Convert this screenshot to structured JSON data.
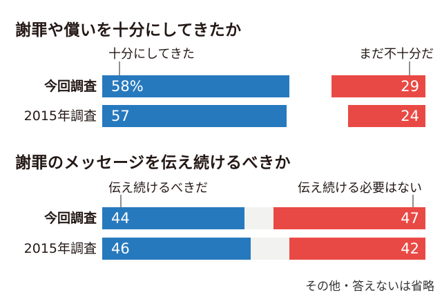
{
  "chart_data": [
    {
      "type": "bar",
      "orientation": "horizontal_paired",
      "title": "謝罪や償いを十分にしてきたか",
      "categories": [
        "今回調査",
        "2015年調査"
      ],
      "series": [
        {
          "name": "十分にしてきた",
          "color": "#2779be",
          "values": [
            58,
            57
          ],
          "value_labels": [
            "58%",
            "57"
          ]
        },
        {
          "name": "まだ不十分だ",
          "color": "#e94944",
          "values": [
            29,
            24
          ],
          "value_labels": [
            "29",
            "24"
          ]
        }
      ],
      "xlim": [
        0,
        100
      ],
      "value_unit": "%",
      "legend_position": "above-bars",
      "grid": false
    },
    {
      "type": "bar",
      "orientation": "horizontal_paired",
      "title": "謝罪のメッセージを伝え続けるべきか",
      "categories": [
        "今回調査",
        "2015年調査"
      ],
      "series": [
        {
          "name": "伝え続けるべきだ",
          "color": "#2779be",
          "values": [
            44,
            46
          ],
          "value_labels": [
            "44",
            "46"
          ]
        },
        {
          "name": "伝え続ける必要はない",
          "color": "#e94944",
          "values": [
            47,
            42
          ],
          "value_labels": [
            "47",
            "42"
          ]
        }
      ],
      "xlim": [
        0,
        100
      ],
      "value_unit": "%",
      "legend_position": "above-bars",
      "grid": false
    }
  ],
  "footer_note": "その他・答えないは省略",
  "colors": {
    "bar_blue": "#2779be",
    "bar_red": "#e94944",
    "remainder_gray": "#f2f2f0",
    "title_text": "#231815",
    "connector_line": "#8f8f8f",
    "value_text": "#ffffff",
    "background": "#ffffff"
  }
}
